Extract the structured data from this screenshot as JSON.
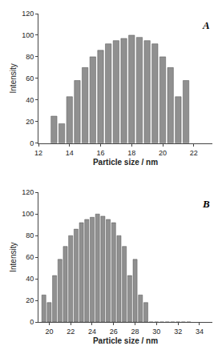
{
  "chart_data": [
    {
      "type": "bar",
      "title": "A",
      "xlabel": "Particle size / nm",
      "ylabel": "Intensity",
      "x": [
        13.0,
        13.5,
        14.0,
        14.5,
        15.0,
        15.5,
        16.0,
        16.5,
        17.0,
        17.5,
        18.0,
        18.5,
        19.0,
        19.5,
        20.0,
        20.5,
        21.0,
        21.5
      ],
      "values": [
        25,
        18,
        43,
        58,
        70,
        80,
        86,
        92,
        95,
        97,
        100,
        98,
        95,
        92,
        80,
        70,
        43,
        58
      ],
      "color": "#909090",
      "xlim": [
        12,
        23.2
      ],
      "xticks": [
        12,
        14,
        16,
        18,
        20,
        22
      ],
      "ylim": [
        0,
        120
      ],
      "yticks": [
        0,
        20,
        40,
        60,
        80,
        100,
        120
      ],
      "grid": false
    },
    {
      "type": "bar",
      "title": "B",
      "xlabel": "Particle size / nm",
      "ylabel": "Intensity",
      "x": [
        19.5,
        20.0,
        20.5,
        21.0,
        21.5,
        22.0,
        22.5,
        23.0,
        23.5,
        24.0,
        24.5,
        25.0,
        25.5,
        26.0,
        26.5,
        27.0,
        27.5,
        28.0,
        28.5,
        29.0,
        29.5,
        30.0,
        30.5,
        31.0,
        31.5,
        32.0,
        32.5,
        33.0
      ],
      "values": [
        25,
        18,
        43,
        58,
        70,
        80,
        86,
        92,
        95,
        97,
        100,
        98,
        95,
        92,
        80,
        70,
        43,
        58,
        25,
        18,
        0,
        0,
        0,
        0,
        0,
        0,
        0,
        0
      ],
      "color": "#909090",
      "xlim": [
        19,
        35.2
      ],
      "xticks": [
        20,
        22,
        24,
        26,
        28,
        30,
        32,
        34
      ],
      "ylim": [
        0,
        120
      ],
      "yticks": [
        0,
        20,
        40,
        60,
        80,
        100,
        120
      ],
      "grid": false
    }
  ]
}
